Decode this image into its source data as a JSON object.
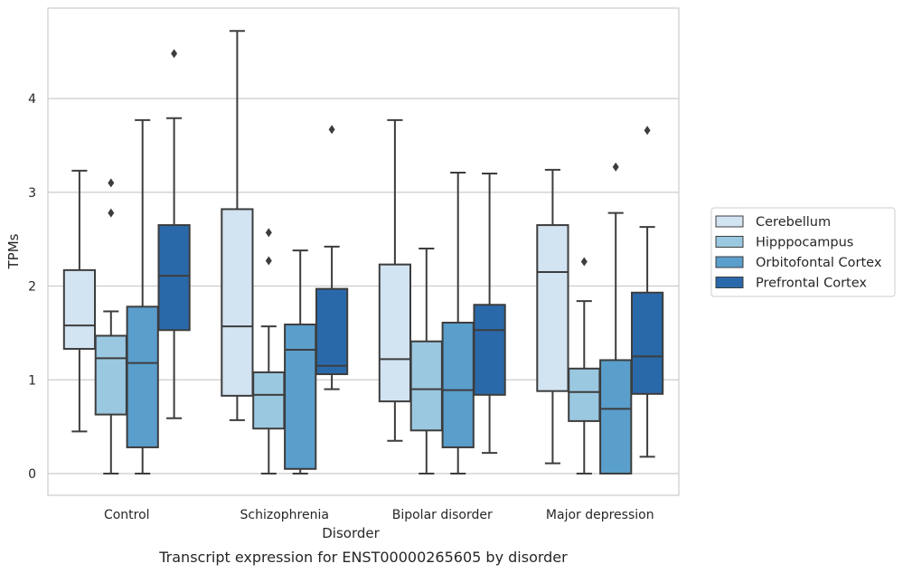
{
  "chart_data": {
    "type": "box",
    "title": "",
    "caption": "Transcript expression for ENST00000265605 by disorder",
    "xlabel": "Disorder",
    "ylabel": "TPMs",
    "ylim": [
      -0.22,
      4.97
    ],
    "yticks": [
      0,
      1,
      2,
      3,
      4
    ],
    "grid": "horizontal",
    "legend_position": "right",
    "categories": [
      "Control",
      "Schizophrenia",
      "Bipolar disorder",
      "Major depression"
    ],
    "series": [
      {
        "name": "Cerebellum",
        "color": "#d2e3f2",
        "boxes": [
          {
            "whislo": 0.45,
            "q1": 1.33,
            "med": 1.58,
            "q3": 2.17,
            "whishi": 3.23,
            "fliers": []
          },
          {
            "whislo": 0.57,
            "q1": 0.83,
            "med": 1.57,
            "q3": 2.82,
            "whishi": 4.72,
            "fliers": []
          },
          {
            "whislo": 0.35,
            "q1": 0.77,
            "med": 1.22,
            "q3": 2.23,
            "whishi": 3.77,
            "fliers": []
          },
          {
            "whislo": 0.11,
            "q1": 0.88,
            "med": 2.15,
            "q3": 2.65,
            "whishi": 3.24,
            "fliers": []
          }
        ]
      },
      {
        "name": "Hipppocampus",
        "color": "#9ac8e0",
        "boxes": [
          {
            "whislo": 0.0,
            "q1": 0.63,
            "med": 1.23,
            "q3": 1.47,
            "whishi": 1.73,
            "fliers": [
              2.78,
              3.1
            ]
          },
          {
            "whislo": 0.0,
            "q1": 0.48,
            "med": 0.84,
            "q3": 1.08,
            "whishi": 1.57,
            "fliers": [
              2.27,
              2.57
            ]
          },
          {
            "whislo": 0.0,
            "q1": 0.46,
            "med": 0.9,
            "q3": 1.41,
            "whishi": 2.4,
            "fliers": []
          },
          {
            "whislo": 0.0,
            "q1": 0.56,
            "med": 0.87,
            "q3": 1.12,
            "whishi": 1.84,
            "fliers": [
              2.26
            ]
          }
        ]
      },
      {
        "name": "Orbitofontal Cortex",
        "color": "#5a9ecc",
        "boxes": [
          {
            "whislo": 0.0,
            "q1": 0.28,
            "med": 1.18,
            "q3": 1.78,
            "whishi": 3.77,
            "fliers": []
          },
          {
            "whislo": 0.0,
            "q1": 0.05,
            "med": 1.32,
            "q3": 1.59,
            "whishi": 2.38,
            "fliers": []
          },
          {
            "whislo": 0.0,
            "q1": 0.28,
            "med": 0.89,
            "q3": 1.61,
            "whishi": 3.21,
            "fliers": []
          },
          {
            "whislo": 0.0,
            "q1": 0.0,
            "med": 0.69,
            "q3": 1.21,
            "whishi": 2.78,
            "fliers": [
              3.27
            ]
          }
        ]
      },
      {
        "name": "Prefrontal Cortex",
        "color": "#2a69a9",
        "boxes": [
          {
            "whislo": 0.59,
            "q1": 1.53,
            "med": 2.11,
            "q3": 2.65,
            "whishi": 3.79,
            "fliers": [
              4.48
            ]
          },
          {
            "whislo": 0.9,
            "q1": 1.06,
            "med": 1.15,
            "q3": 1.97,
            "whishi": 2.42,
            "fliers": [
              3.67
            ]
          },
          {
            "whislo": 0.22,
            "q1": 0.84,
            "med": 1.53,
            "q3": 1.8,
            "whishi": 3.2,
            "fliers": []
          },
          {
            "whislo": 0.18,
            "q1": 0.85,
            "med": 1.25,
            "q3": 1.93,
            "whishi": 2.63,
            "fliers": [
              3.66
            ]
          }
        ]
      }
    ]
  }
}
